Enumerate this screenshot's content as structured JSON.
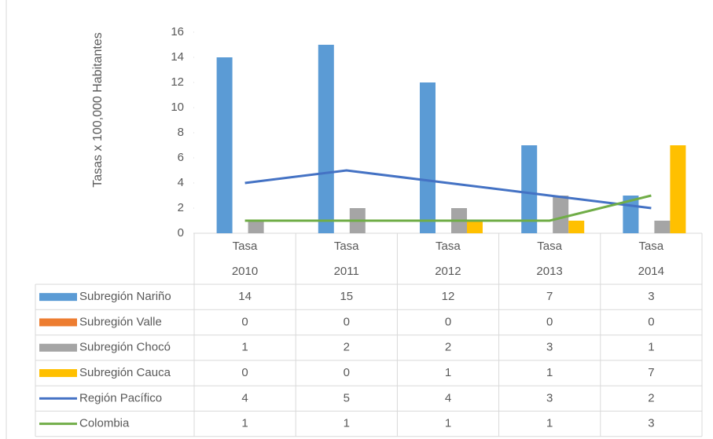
{
  "chart_data": {
    "type": "bar",
    "y_axis_label": "Tasas x 100,000 Habitantes",
    "categories": [
      "Tasa 2010",
      "Tasa 2011",
      "Tasa 2012",
      "Tasa 2013",
      "Tasa 2014"
    ],
    "series": [
      {
        "name": "Subregión Nariño",
        "color": "#5b9bd5",
        "type": "bar",
        "values": [
          14,
          15,
          12,
          7,
          3
        ]
      },
      {
        "name": "Subregión Valle",
        "color": "#ed7d31",
        "type": "bar",
        "values": [
          0,
          0,
          0,
          0,
          0
        ]
      },
      {
        "name": "Subregión Chocó",
        "color": "#a5a5a5",
        "type": "bar",
        "values": [
          1,
          2,
          2,
          3,
          1
        ]
      },
      {
        "name": "Subregión Cauca",
        "color": "#ffc000",
        "type": "bar",
        "values": [
          0,
          0,
          1,
          1,
          7
        ]
      },
      {
        "name": "Región Pacífico",
        "color": "#4472c4",
        "type": "line",
        "values": [
          4,
          5,
          4,
          3,
          2
        ]
      },
      {
        "name": "Colombia",
        "color": "#70ad47",
        "type": "line",
        "values": [
          1,
          1,
          1,
          1,
          3
        ]
      }
    ],
    "ylim": [
      0,
      16
    ],
    "yticks": [
      0,
      2,
      4,
      6,
      8,
      10,
      12,
      14,
      16
    ],
    "grid": false
  }
}
